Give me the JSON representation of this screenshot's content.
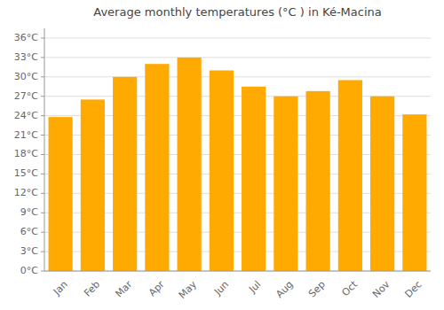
{
  "chart_data": {
    "type": "bar",
    "title": "Average monthly temperatures (°C ) in Ké-Macina",
    "categories": [
      "Jan",
      "Feb",
      "Mar",
      "Apr",
      "May",
      "Jun",
      "Jul",
      "Aug",
      "Sep",
      "Oct",
      "Nov",
      "Dec"
    ],
    "values": [
      23.8,
      26.5,
      30.0,
      32.0,
      33.0,
      31.0,
      28.5,
      27.0,
      27.8,
      29.5,
      27.0,
      24.2
    ],
    "color": "#FFAA00",
    "ylim": [
      0,
      37.5
    ],
    "yticks": [
      {
        "value": 0,
        "label": "0°C"
      },
      {
        "value": 3,
        "label": "3°C"
      },
      {
        "value": 6,
        "label": "6°C"
      },
      {
        "value": 9,
        "label": "9°C"
      },
      {
        "value": 12,
        "label": "12°C"
      },
      {
        "value": 15,
        "label": "15°C"
      },
      {
        "value": 18,
        "label": "18°C"
      },
      {
        "value": 21,
        "label": "21°C"
      },
      {
        "value": 24,
        "label": "24°C"
      },
      {
        "value": 27,
        "label": "27°C"
      },
      {
        "value": 30,
        "label": "30°C"
      },
      {
        "value": 33,
        "label": "33°C"
      },
      {
        "value": 36,
        "label": "36°C"
      }
    ],
    "grid": true
  }
}
